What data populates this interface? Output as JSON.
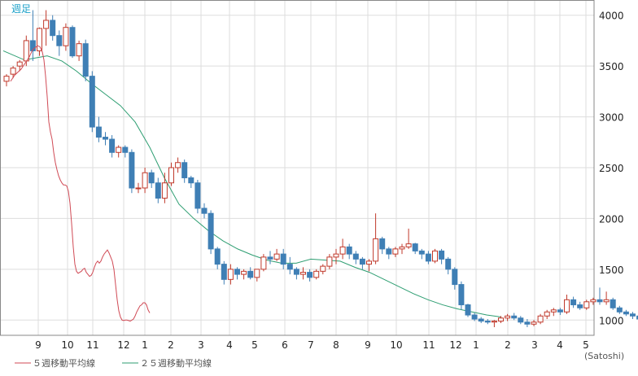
{
  "chart_data": {
    "type": "candlestick",
    "period_label": "週足",
    "unit_label": "(Satoshi)",
    "ylim": [
      850,
      4150
    ],
    "y_ticks": [
      1000,
      1500,
      2000,
      2500,
      3000,
      3500,
      4000
    ],
    "x_tick_labels": [
      "9",
      "10",
      "11",
      "12",
      "1",
      "2",
      "3",
      "4",
      "5",
      "6",
      "7",
      "8",
      "9",
      "10",
      "11",
      "12",
      "1",
      "2",
      "3",
      "4",
      "5"
    ],
    "grid": true,
    "legend": [
      {
        "name": "５週移動平均線",
        "color": "#d04a55"
      },
      {
        "name": "２５週移動平均線",
        "color": "#2e9e72"
      }
    ],
    "colors": {
      "up": "#c0392b",
      "down": "#3f7fb5",
      "ma5": "#d04a55",
      "ma25": "#2e9e72",
      "grid": "#dddddd",
      "axis": "#888888"
    },
    "candles": [
      [
        3350,
        3420,
        3300,
        3400
      ],
      [
        3420,
        3500,
        3380,
        3480
      ],
      [
        3500,
        3560,
        3450,
        3540
      ],
      [
        3550,
        3800,
        3500,
        3750
      ],
      [
        3750,
        4050,
        3550,
        3650
      ],
      [
        3650,
        3880,
        3600,
        3870
      ],
      [
        3870,
        4050,
        3700,
        3950
      ],
      [
        3950,
        4000,
        3750,
        3800
      ],
      [
        3800,
        3850,
        3600,
        3700
      ],
      [
        3700,
        3920,
        3650,
        3880
      ],
      [
        3880,
        3900,
        3580,
        3600
      ],
      [
        3600,
        3750,
        3550,
        3720
      ],
      [
        3720,
        3760,
        3350,
        3400
      ],
      [
        3400,
        3450,
        2850,
        2900
      ],
      [
        2900,
        3000,
        2750,
        2800
      ],
      [
        2800,
        2850,
        2720,
        2780
      ],
      [
        2780,
        2820,
        2600,
        2650
      ],
      [
        2650,
        2720,
        2600,
        2700
      ],
      [
        2700,
        2720,
        2600,
        2650
      ],
      [
        2650,
        2680,
        2250,
        2300
      ],
      [
        2300,
        2350,
        2250,
        2300
      ],
      [
        2300,
        2500,
        2250,
        2450
      ],
      [
        2450,
        2480,
        2300,
        2350
      ],
      [
        2350,
        2400,
        2150,
        2200
      ],
      [
        2200,
        2450,
        2150,
        2350
      ],
      [
        2350,
        2550,
        2320,
        2500
      ],
      [
        2500,
        2600,
        2450,
        2550
      ],
      [
        2550,
        2580,
        2350,
        2400
      ],
      [
        2400,
        2420,
        2300,
        2350
      ],
      [
        2350,
        2380,
        2050,
        2100
      ],
      [
        2100,
        2150,
        2000,
        2050
      ],
      [
        2050,
        2080,
        1650,
        1700
      ],
      [
        1700,
        1720,
        1500,
        1550
      ],
      [
        1550,
        1580,
        1350,
        1400
      ],
      [
        1400,
        1550,
        1350,
        1500
      ],
      [
        1500,
        1520,
        1400,
        1450
      ],
      [
        1450,
        1500,
        1400,
        1480
      ],
      [
        1480,
        1520,
        1400,
        1420
      ],
      [
        1420,
        1500,
        1380,
        1500
      ],
      [
        1500,
        1650,
        1480,
        1620
      ],
      [
        1620,
        1680,
        1550,
        1600
      ],
      [
        1600,
        1700,
        1580,
        1650
      ],
      [
        1650,
        1700,
        1500,
        1550
      ],
      [
        1550,
        1620,
        1450,
        1500
      ],
      [
        1500,
        1520,
        1400,
        1450
      ],
      [
        1450,
        1520,
        1400,
        1470
      ],
      [
        1470,
        1500,
        1380,
        1420
      ],
      [
        1420,
        1500,
        1400,
        1480
      ],
      [
        1480,
        1550,
        1450,
        1530
      ],
      [
        1530,
        1650,
        1500,
        1620
      ],
      [
        1620,
        1700,
        1550,
        1650
      ],
      [
        1650,
        1800,
        1600,
        1720
      ],
      [
        1720,
        1750,
        1600,
        1650
      ],
      [
        1650,
        1680,
        1550,
        1600
      ],
      [
        1600,
        1620,
        1500,
        1550
      ],
      [
        1550,
        1600,
        1480,
        1580
      ],
      [
        1580,
        2050,
        1550,
        1800
      ],
      [
        1800,
        1820,
        1650,
        1700
      ],
      [
        1700,
        1720,
        1600,
        1650
      ],
      [
        1650,
        1720,
        1620,
        1700
      ],
      [
        1700,
        1750,
        1650,
        1720
      ],
      [
        1720,
        1900,
        1700,
        1750
      ],
      [
        1750,
        1760,
        1650,
        1680
      ],
      [
        1680,
        1700,
        1600,
        1650
      ],
      [
        1650,
        1680,
        1550,
        1580
      ],
      [
        1580,
        1700,
        1560,
        1680
      ],
      [
        1680,
        1700,
        1550,
        1600
      ],
      [
        1600,
        1620,
        1450,
        1500
      ],
      [
        1500,
        1520,
        1300,
        1350
      ],
      [
        1350,
        1380,
        1100,
        1150
      ],
      [
        1150,
        1160,
        1030,
        1050
      ],
      [
        1050,
        1070,
        990,
        1010
      ],
      [
        1010,
        1030,
        970,
        990
      ],
      [
        990,
        1010,
        960,
        980
      ],
      [
        980,
        1000,
        930,
        990
      ],
      [
        990,
        1040,
        970,
        1020
      ],
      [
        1020,
        1060,
        990,
        1040
      ],
      [
        1040,
        1070,
        1000,
        1020
      ],
      [
        1020,
        1040,
        960,
        980
      ],
      [
        980,
        1010,
        930,
        960
      ],
      [
        960,
        1000,
        940,
        980
      ],
      [
        980,
        1060,
        960,
        1040
      ],
      [
        1040,
        1100,
        1010,
        1080
      ],
      [
        1080,
        1120,
        1040,
        1100
      ],
      [
        1100,
        1120,
        1050,
        1080
      ],
      [
        1080,
        1250,
        1060,
        1200
      ],
      [
        1200,
        1230,
        1120,
        1150
      ],
      [
        1150,
        1180,
        1100,
        1120
      ],
      [
        1120,
        1200,
        1100,
        1180
      ],
      [
        1180,
        1220,
        1150,
        1200
      ],
      [
        1200,
        1320,
        1150,
        1180
      ],
      [
        1180,
        1280,
        1150,
        1200
      ],
      [
        1200,
        1220,
        1100,
        1120
      ],
      [
        1120,
        1140,
        1060,
        1080
      ],
      [
        1080,
        1100,
        1040,
        1060
      ],
      [
        1060,
        1080,
        1010,
        1040
      ],
      [
        1040,
        1060,
        990,
        1010
      ]
    ],
    "ma5": [
      [
        3430,
        3350
      ],
      [
        3480,
        3410
      ],
      [
        3560,
        3470
      ],
      [
        3610,
        3530
      ],
      [
        3660,
        3590
      ],
      [
        3700,
        3660
      ],
      [
        3760,
        3700
      ],
      [
        3790,
        3690
      ],
      [
        3820,
        3640
      ],
      [
        3840,
        3560
      ],
      [
        3860,
        3400
      ],
      [
        3880,
        3200
      ],
      [
        3900,
        2950
      ],
      [
        3920,
        2850
      ],
      [
        3940,
        2780
      ],
      [
        3960,
        2650
      ],
      [
        3980,
        2550
      ],
      [
        4000,
        2480
      ],
      [
        4020,
        2420
      ],
      [
        4040,
        2380
      ],
      [
        4060,
        2350
      ],
      [
        4080,
        2330
      ],
      [
        4100,
        2330
      ],
      [
        4120,
        2320
      ],
      [
        4140,
        2270
      ],
      [
        4160,
        2150
      ],
      [
        4180,
        1950
      ],
      [
        4200,
        1720
      ],
      [
        4220,
        1550
      ],
      [
        4240,
        1480
      ],
      [
        4260,
        1460
      ],
      [
        4280,
        1470
      ],
      [
        4300,
        1480
      ],
      [
        4320,
        1500
      ],
      [
        4340,
        1510
      ],
      [
        4360,
        1470
      ],
      [
        4380,
        1450
      ],
      [
        4400,
        1430
      ],
      [
        4420,
        1440
      ],
      [
        4440,
        1470
      ],
      [
        4460,
        1520
      ],
      [
        4480,
        1560
      ],
      [
        4500,
        1580
      ],
      [
        4520,
        1560
      ],
      [
        4540,
        1580
      ],
      [
        4560,
        1620
      ],
      [
        4580,
        1650
      ],
      [
        4600,
        1670
      ],
      [
        4620,
        1690
      ],
      [
        4640,
        1660
      ],
      [
        4660,
        1620
      ],
      [
        4680,
        1580
      ],
      [
        4700,
        1500
      ],
      [
        4720,
        1350
      ],
      [
        4740,
        1200
      ],
      [
        4760,
        1090
      ],
      [
        4780,
        1030
      ],
      [
        4800,
        1000
      ],
      [
        4820,
        995
      ],
      [
        4840,
        1000
      ],
      [
        4860,
        1000
      ],
      [
        4880,
        995
      ],
      [
        4900,
        990
      ],
      [
        4920,
        1000
      ],
      [
        4940,
        1010
      ],
      [
        4960,
        1040
      ],
      [
        4980,
        1080
      ],
      [
        5000,
        1110
      ],
      [
        5020,
        1140
      ],
      [
        5040,
        1150
      ],
      [
        5060,
        1170
      ],
      [
        5080,
        1170
      ],
      [
        5100,
        1150
      ],
      [
        5120,
        1100
      ],
      [
        5140,
        1070
      ]
    ],
    "ma25": [
      [
        3340,
        3650
      ],
      [
        3600,
        3560
      ],
      [
        3880,
        3600
      ],
      [
        4060,
        3550
      ],
      [
        4240,
        3450
      ],
      [
        4420,
        3330
      ],
      [
        4600,
        3220
      ],
      [
        4780,
        3110
      ],
      [
        4960,
        2950
      ],
      [
        5140,
        2700
      ],
      [
        5320,
        2400
      ],
      [
        5500,
        2140
      ],
      [
        5680,
        2000
      ],
      [
        5860,
        1880
      ],
      [
        6040,
        1780
      ],
      [
        6220,
        1700
      ],
      [
        6400,
        1640
      ],
      [
        6580,
        1590
      ],
      [
        6760,
        1560
      ],
      [
        6940,
        1560
      ],
      [
        7120,
        1600
      ],
      [
        7300,
        1590
      ],
      [
        7480,
        1580
      ],
      [
        7660,
        1520
      ],
      [
        7840,
        1470
      ],
      [
        8020,
        1400
      ],
      [
        8200,
        1330
      ],
      [
        8380,
        1260
      ],
      [
        8560,
        1200
      ],
      [
        8740,
        1150
      ],
      [
        8920,
        1110
      ],
      [
        9100,
        1080
      ],
      [
        9280,
        1050
      ],
      [
        9460,
        1030
      ]
    ]
  }
}
